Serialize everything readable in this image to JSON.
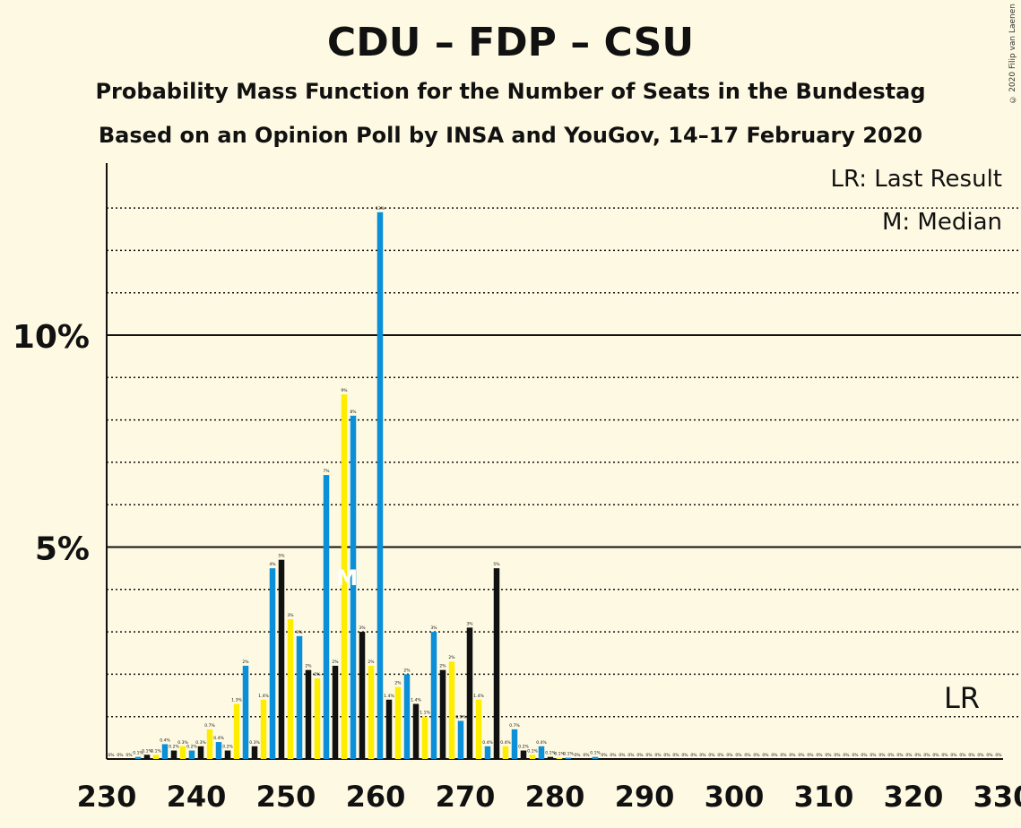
{
  "title": "CDU – FDP – CSU",
  "subtitle": "Probability Mass Function for the Number of Seats in the Bundestag",
  "subtitle2": "Based on an Opinion Poll by INSA and YouGov, 14–17 February 2020",
  "copyright": "© 2020 Filip van Laenen",
  "legend": {
    "last_result": "LR: Last Result",
    "median": "M: Median"
  },
  "colors": {
    "blue": "#0A8FD8",
    "black": "#111111",
    "yellow": "#FFED00",
    "background": "#FEF9E2"
  },
  "chart_data": {
    "type": "bar",
    "xlabel": "",
    "ylabel": "",
    "xlim": [
      230,
      330
    ],
    "ylim": [
      0,
      14
    ],
    "x_ticks": [
      230,
      240,
      250,
      260,
      270,
      280,
      290,
      300,
      310,
      320,
      330
    ],
    "y_ticks": [
      {
        "value": 5,
        "label": "5%"
      },
      {
        "value": 10,
        "label": "10%"
      }
    ],
    "median": 257,
    "median_label": "M",
    "last_result": 326,
    "last_result_label": "LR",
    "color_cycle": [
      "blue",
      "black",
      "yellow"
    ],
    "bars": [
      {
        "x": 230,
        "value": 0.0,
        "label": "0%"
      },
      {
        "x": 231,
        "value": 0.0,
        "label": "0%"
      },
      {
        "x": 232,
        "value": 0.0,
        "label": "0%"
      },
      {
        "x": 233,
        "value": 0.05,
        "label": "0.1%"
      },
      {
        "x": 234,
        "value": 0.1,
        "label": "0.1%"
      },
      {
        "x": 235,
        "value": 0.1,
        "label": "0.1%"
      },
      {
        "x": 236,
        "value": 0.35,
        "label": "0.4%"
      },
      {
        "x": 237,
        "value": 0.2,
        "label": "0.2%"
      },
      {
        "x": 238,
        "value": 0.3,
        "label": "0.3%"
      },
      {
        "x": 239,
        "value": 0.2,
        "label": "0.2%"
      },
      {
        "x": 240,
        "value": 0.3,
        "label": "0.3%"
      },
      {
        "x": 241,
        "value": 0.7,
        "label": "0.7%"
      },
      {
        "x": 242,
        "value": 0.4,
        "label": "0.4%"
      },
      {
        "x": 243,
        "value": 0.2,
        "label": "0.2%"
      },
      {
        "x": 244,
        "value": 1.3,
        "label": "1.3%"
      },
      {
        "x": 245,
        "value": 2.2,
        "label": "2%"
      },
      {
        "x": 246,
        "value": 0.3,
        "label": "0.3%"
      },
      {
        "x": 247,
        "value": 1.4,
        "label": "1.4%"
      },
      {
        "x": 248,
        "value": 4.5,
        "label": "4%"
      },
      {
        "x": 249,
        "value": 4.7,
        "label": "5%"
      },
      {
        "x": 250,
        "value": 3.3,
        "label": "3%"
      },
      {
        "x": 251,
        "value": 2.9,
        "label": "3%"
      },
      {
        "x": 252,
        "value": 2.1,
        "label": "2%"
      },
      {
        "x": 253,
        "value": 1.9,
        "label": "2%"
      },
      {
        "x": 254,
        "value": 6.7,
        "label": "7%"
      },
      {
        "x": 255,
        "value": 2.2,
        "label": "2%"
      },
      {
        "x": 256,
        "value": 8.6,
        "label": "9%"
      },
      {
        "x": 257,
        "value": 8.1,
        "label": "8%"
      },
      {
        "x": 258,
        "value": 3.0,
        "label": "3%"
      },
      {
        "x": 259,
        "value": 2.2,
        "label": "2%"
      },
      {
        "x": 260,
        "value": 12.9,
        "label": "13%"
      },
      {
        "x": 261,
        "value": 1.4,
        "label": "1.4%"
      },
      {
        "x": 262,
        "value": 1.7,
        "label": "2%"
      },
      {
        "x": 263,
        "value": 2.0,
        "label": "2%"
      },
      {
        "x": 264,
        "value": 1.3,
        "label": "1.4%"
      },
      {
        "x": 265,
        "value": 1.0,
        "label": "1.1%"
      },
      {
        "x": 266,
        "value": 3.0,
        "label": "3%"
      },
      {
        "x": 267,
        "value": 2.1,
        "label": "2%"
      },
      {
        "x": 268,
        "value": 2.3,
        "label": "2%"
      },
      {
        "x": 269,
        "value": 0.9,
        "label": "0.9%"
      },
      {
        "x": 270,
        "value": 3.1,
        "label": "3%"
      },
      {
        "x": 271,
        "value": 1.4,
        "label": "1.4%"
      },
      {
        "x": 272,
        "value": 0.3,
        "label": "0.4%"
      },
      {
        "x": 273,
        "value": 4.5,
        "label": "5%"
      },
      {
        "x": 274,
        "value": 0.3,
        "label": "0.4%"
      },
      {
        "x": 275,
        "value": 0.7,
        "label": "0.7%"
      },
      {
        "x": 276,
        "value": 0.2,
        "label": "0.2%"
      },
      {
        "x": 277,
        "value": 0.1,
        "label": "0.1%"
      },
      {
        "x": 278,
        "value": 0.3,
        "label": "0.4%"
      },
      {
        "x": 279,
        "value": 0.05,
        "label": "0.1%"
      },
      {
        "x": 280,
        "value": 0.03,
        "label": "0.1%"
      },
      {
        "x": 281,
        "value": 0.03,
        "label": "0.1%"
      },
      {
        "x": 282,
        "value": 0.0,
        "label": "0%"
      },
      {
        "x": 283,
        "value": 0.0,
        "label": "0%"
      },
      {
        "x": 284,
        "value": 0.05,
        "label": "0.1%"
      },
      {
        "x": 285,
        "value": 0.0,
        "label": "0%"
      },
      {
        "x": 286,
        "value": 0.0,
        "label": "0%"
      },
      {
        "x": 287,
        "value": 0.0,
        "label": "0%"
      },
      {
        "x": 288,
        "value": 0.0,
        "label": "0%"
      },
      {
        "x": 289,
        "value": 0.0,
        "label": "0%"
      },
      {
        "x": 290,
        "value": 0.0,
        "label": "0%"
      },
      {
        "x": 291,
        "value": 0.0,
        "label": "0%"
      },
      {
        "x": 292,
        "value": 0.0,
        "label": "0%"
      },
      {
        "x": 293,
        "value": 0.0,
        "label": "0%"
      },
      {
        "x": 294,
        "value": 0.0,
        "label": "0%"
      },
      {
        "x": 295,
        "value": 0.0,
        "label": "0%"
      },
      {
        "x": 296,
        "value": 0.0,
        "label": "0%"
      },
      {
        "x": 297,
        "value": 0.0,
        "label": "0%"
      },
      {
        "x": 298,
        "value": 0.0,
        "label": "0%"
      },
      {
        "x": 299,
        "value": 0.0,
        "label": "0%"
      },
      {
        "x": 300,
        "value": 0.0,
        "label": "0%"
      },
      {
        "x": 301,
        "value": 0.0,
        "label": "0%"
      },
      {
        "x": 302,
        "value": 0.0,
        "label": "0%"
      },
      {
        "x": 303,
        "value": 0.0,
        "label": "0%"
      },
      {
        "x": 304,
        "value": 0.0,
        "label": "0%"
      },
      {
        "x": 305,
        "value": 0.0,
        "label": "0%"
      },
      {
        "x": 306,
        "value": 0.0,
        "label": "0%"
      },
      {
        "x": 307,
        "value": 0.0,
        "label": "0%"
      },
      {
        "x": 308,
        "value": 0.0,
        "label": "0%"
      },
      {
        "x": 309,
        "value": 0.0,
        "label": "0%"
      },
      {
        "x": 310,
        "value": 0.0,
        "label": "0%"
      },
      {
        "x": 311,
        "value": 0.0,
        "label": "0%"
      },
      {
        "x": 312,
        "value": 0.0,
        "label": "0%"
      },
      {
        "x": 313,
        "value": 0.0,
        "label": "0%"
      },
      {
        "x": 314,
        "value": 0.0,
        "label": "0%"
      },
      {
        "x": 315,
        "value": 0.0,
        "label": "0%"
      },
      {
        "x": 316,
        "value": 0.0,
        "label": "0%"
      },
      {
        "x": 317,
        "value": 0.0,
        "label": "0%"
      },
      {
        "x": 318,
        "value": 0.0,
        "label": "0%"
      },
      {
        "x": 319,
        "value": 0.0,
        "label": "0%"
      },
      {
        "x": 320,
        "value": 0.0,
        "label": "0%"
      },
      {
        "x": 321,
        "value": 0.0,
        "label": "0%"
      },
      {
        "x": 322,
        "value": 0.0,
        "label": "0%"
      },
      {
        "x": 323,
        "value": 0.0,
        "label": "0%"
      },
      {
        "x": 324,
        "value": 0.0,
        "label": "0%"
      },
      {
        "x": 325,
        "value": 0.0,
        "label": "0%"
      },
      {
        "x": 326,
        "value": 0.0,
        "label": "0%"
      },
      {
        "x": 327,
        "value": 0.0,
        "label": "0%"
      },
      {
        "x": 328,
        "value": 0.0,
        "label": "0%"
      },
      {
        "x": 329,
        "value": 0.0,
        "label": "0%"
      }
    ]
  }
}
